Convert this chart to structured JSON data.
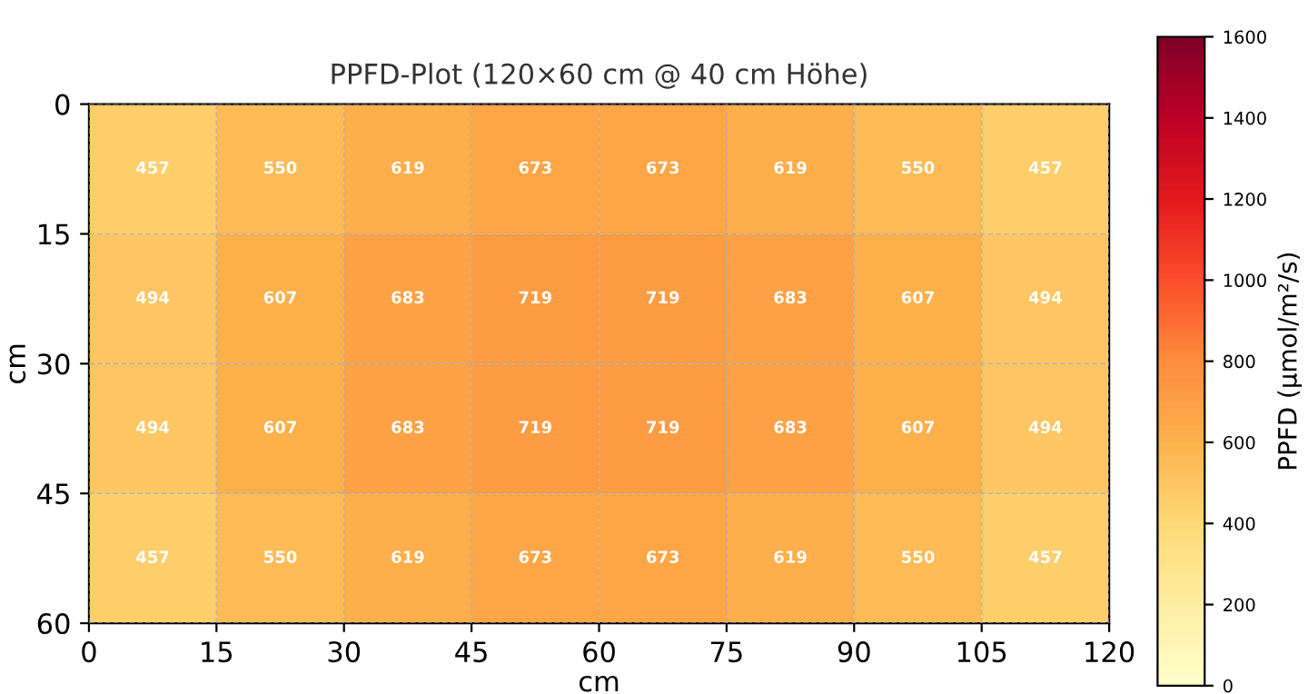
{
  "chart_data": {
    "type": "heatmap",
    "subtitle": "PPFD-Plot (120×60 cm @ 40 cm Höhe)",
    "xlabel": "cm",
    "ylabel": "cm",
    "clabel": "PPFD (µmol/m²/s)",
    "x": [
      7.5,
      22.5,
      37.5,
      52.5,
      67.5,
      82.5,
      97.5,
      112.5
    ],
    "y": [
      7.5,
      22.5,
      37.5,
      52.5
    ],
    "cells": [
      [
        457,
        550,
        619,
        673,
        673,
        619,
        550,
        457
      ],
      [
        494,
        607,
        683,
        719,
        719,
        683,
        607,
        494
      ],
      [
        494,
        607,
        683,
        719,
        719,
        683,
        607,
        494
      ],
      [
        457,
        550,
        619,
        673,
        673,
        619,
        550,
        457
      ]
    ],
    "data_labels": true,
    "xlim": [
      0,
      120
    ],
    "xticks": [
      0,
      15,
      30,
      45,
      60,
      75,
      90,
      105,
      120
    ],
    "ylim": [
      60,
      0
    ],
    "yticks": [
      0,
      15,
      30,
      45,
      60
    ],
    "clim": [
      0,
      1600
    ],
    "cticks": [
      0,
      200,
      400,
      600,
      800,
      1000,
      1200,
      1400,
      1600
    ],
    "grid": true
  }
}
